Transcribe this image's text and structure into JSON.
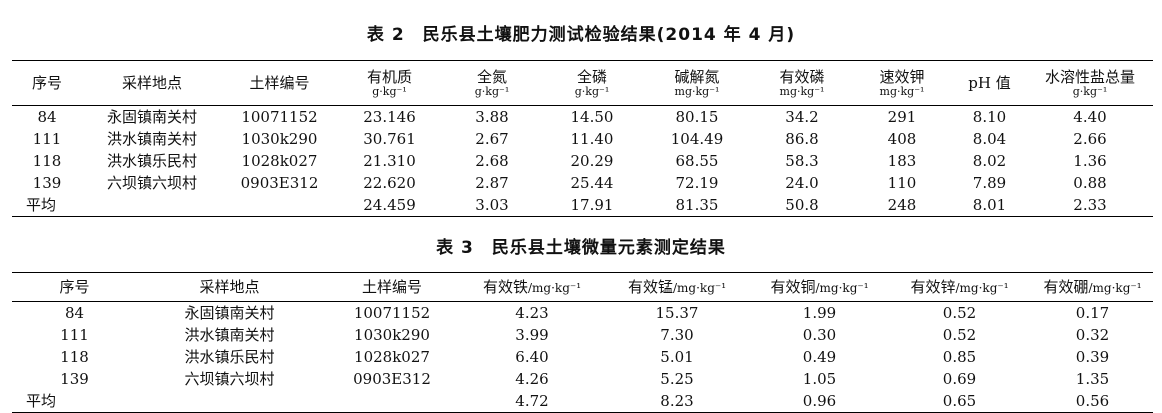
{
  "table2": {
    "caption": "表 2　民乐县土壤肥力测试检验结果(2014 年 4 月)",
    "columns": [
      {
        "name": "序号",
        "unit": ""
      },
      {
        "name": "采样地点",
        "unit": ""
      },
      {
        "name": "土样编号",
        "unit": ""
      },
      {
        "name": "有机质",
        "unit": "g·kg⁻¹"
      },
      {
        "name": "全氮",
        "unit": "g·kg⁻¹"
      },
      {
        "name": "全磷",
        "unit": "g·kg⁻¹"
      },
      {
        "name": "碱解氮",
        "unit": "mg·kg⁻¹"
      },
      {
        "name": "有效磷",
        "unit": "mg·kg⁻¹"
      },
      {
        "name": "速效钾",
        "unit": "mg·kg⁻¹"
      },
      {
        "name": "pH 值",
        "unit": ""
      },
      {
        "name": "水溶性盐总量",
        "unit": "g·kg⁻¹"
      }
    ],
    "rows": [
      [
        "84",
        "永固镇南关村",
        "10071152",
        "23.146",
        "3.88",
        "14.50",
        "80.15",
        "34.2",
        "291",
        "8.10",
        "4.40"
      ],
      [
        "111",
        "洪水镇南关村",
        "1030k290",
        "30.761",
        "2.67",
        "11.40",
        "104.49",
        "86.8",
        "408",
        "8.04",
        "2.66"
      ],
      [
        "118",
        "洪水镇乐民村",
        "1028k027",
        "21.310",
        "2.68",
        "20.29",
        "68.55",
        "58.3",
        "183",
        "8.02",
        "1.36"
      ],
      [
        "139",
        "六坝镇六坝村",
        "0903E312",
        "22.620",
        "2.87",
        "25.44",
        "72.19",
        "24.0",
        "110",
        "7.89",
        "0.88"
      ],
      [
        "平均",
        "",
        "",
        "24.459",
        "3.03",
        "17.91",
        "81.35",
        "50.8",
        "248",
        "8.01",
        "2.33"
      ]
    ]
  },
  "table3": {
    "caption": "表 3　民乐县土壤微量元素测定结果",
    "columns": [
      {
        "name": "序号",
        "unit": ""
      },
      {
        "name": "采样地点",
        "unit": ""
      },
      {
        "name": "土样编号",
        "unit": ""
      },
      {
        "name": "有效铁",
        "unit": "/mg·kg⁻¹"
      },
      {
        "name": "有效锰",
        "unit": "/mg·kg⁻¹"
      },
      {
        "name": "有效铜",
        "unit": "/mg·kg⁻¹"
      },
      {
        "name": "有效锌",
        "unit": "/mg·kg⁻¹"
      },
      {
        "name": "有效硼",
        "unit": "/mg·kg⁻¹"
      }
    ],
    "rows": [
      [
        "84",
        "永固镇南关村",
        "10071152",
        "4.23",
        "15.37",
        "1.99",
        "0.52",
        "0.17"
      ],
      [
        "111",
        "洪水镇南关村",
        "1030k290",
        "3.99",
        "7.30",
        "0.30",
        "0.52",
        "0.32"
      ],
      [
        "118",
        "洪水镇乐民村",
        "1028k027",
        "6.40",
        "5.01",
        "0.49",
        "0.85",
        "0.39"
      ],
      [
        "139",
        "六坝镇六坝村",
        "0903E312",
        "4.26",
        "5.25",
        "1.05",
        "0.69",
        "1.35"
      ],
      [
        "平均",
        "",
        "",
        "4.72",
        "8.23",
        "0.96",
        "0.65",
        "0.56"
      ]
    ]
  }
}
